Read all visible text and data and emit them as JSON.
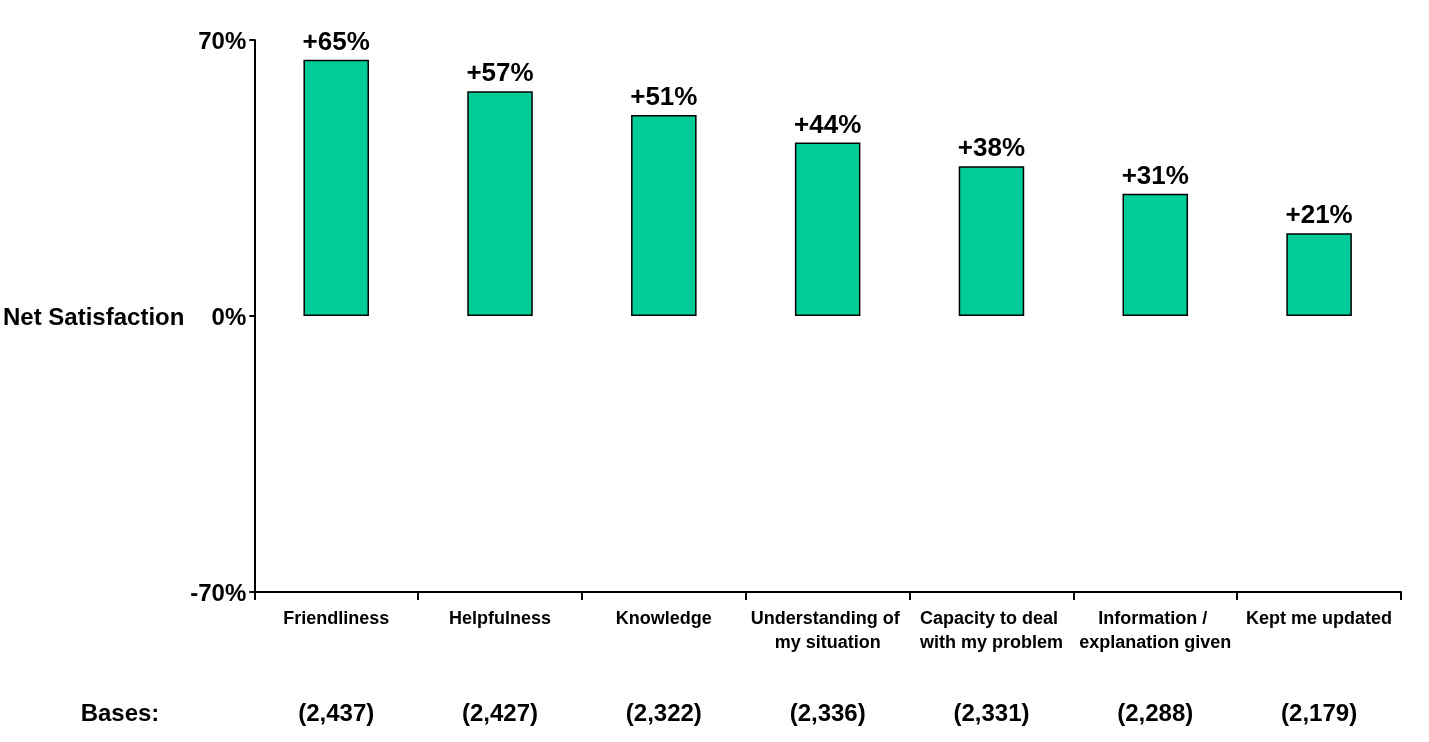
{
  "chart_data": {
    "type": "bar",
    "ylabel": "Net Satisfaction",
    "categories": [
      "Friendliness",
      "Helpfulness",
      "Knowledge",
      "Understanding of my situation",
      "Capacity to deal with my problem",
      "Information / explanation given",
      "Kept me updated"
    ],
    "values": [
      65,
      57,
      51,
      44,
      38,
      31,
      21
    ],
    "value_labels": [
      "+65%",
      "+57%",
      "+51%",
      "+44%",
      "+38%",
      "+31%",
      "+21%"
    ],
    "color": "#00cc99",
    "ylim": [
      -70,
      70
    ],
    "yticks": [
      {
        "value": -70,
        "label": "-70%"
      },
      {
        "value": 0,
        "label": "0%"
      },
      {
        "value": 70,
        "label": "70%"
      }
    ],
    "grid": false,
    "annotations": [
      "Bases:",
      "(2,437)",
      "(2,427)",
      "(2,322)",
      "(2,336)",
      "(2,331)",
      "(2,288)",
      "(2,179)"
    ]
  }
}
